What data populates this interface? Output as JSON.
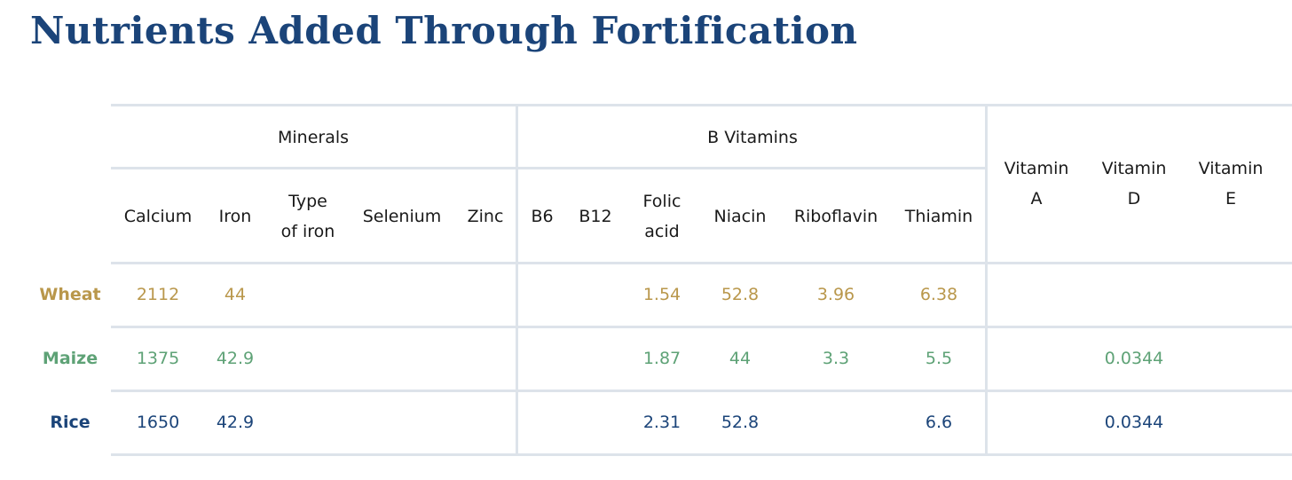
{
  "title": "Nutrients Added Through Fortification",
  "colors": {
    "title": "#1b4479",
    "grid": "#dde3ea",
    "header_text": "#1a1a1a",
    "wheat": "#b9974b",
    "maize": "#5ea276",
    "rice": "#1b4479"
  },
  "groups": {
    "minerals": "Minerals",
    "b_vitamins": "B Vitamins"
  },
  "columns": {
    "calcium": "Calcium",
    "iron": "Iron",
    "type_of_iron": [
      "Type",
      "of iron"
    ],
    "selenium": "Selenium",
    "zinc": "Zinc",
    "b6": "B6",
    "b12": "B12",
    "folic_acid": [
      "Folic",
      "acid"
    ],
    "niacin": "Niacin",
    "riboflavin": "Riboflavin",
    "thiamin": "Thiamin",
    "vitamin_a": [
      "Vitamin",
      "A"
    ],
    "vitamin_d": [
      "Vitamin",
      "D"
    ],
    "vitamin_e": [
      "Vitamin",
      "E"
    ]
  },
  "rows": {
    "wheat": {
      "label": "Wheat",
      "calcium": "2112",
      "iron": "44",
      "folic_acid": "1.54",
      "niacin": "52.8",
      "riboflavin": "3.96",
      "thiamin": "6.38"
    },
    "maize": {
      "label": "Maize",
      "calcium": "1375",
      "iron": "42.9",
      "folic_acid": "1.87",
      "niacin": "44",
      "riboflavin": "3.3",
      "thiamin": "5.5",
      "vitamin_d": "0.0344"
    },
    "rice": {
      "label": "Rice",
      "calcium": "1650",
      "iron": "42.9",
      "folic_acid": "2.31",
      "niacin": "52.8",
      "thiamin": "6.6",
      "vitamin_d": "0.0344"
    }
  }
}
